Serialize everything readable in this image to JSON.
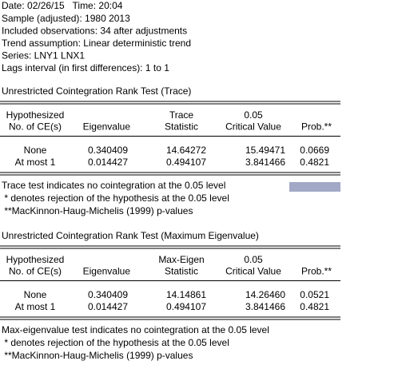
{
  "header": {
    "lines": [
      "Date: 02/26/15   Time: 20:04",
      "Sample (adjusted): 1980 2013",
      "Included observations: 34 after adjustments",
      "Trend assumption: Linear deterministic trend",
      "Series: LNY1 LNX1",
      "Lags interval (in first differences): 1 to 1"
    ]
  },
  "sections": [
    {
      "title": "Unrestricted Cointegration Rank Test (Trace)",
      "columns": [
        [
          "Hypothesized",
          "No. of CE(s)"
        ],
        [
          "Eigenvalue"
        ],
        [
          "Trace",
          "Statistic"
        ],
        [
          "0.05",
          "Critical Value"
        ],
        [
          "Prob.**"
        ]
      ],
      "rows": [
        [
          "None",
          "0.340409",
          "14.64272",
          "15.49471",
          "0.0669"
        ],
        [
          "At most 1",
          "0.014427",
          "0.494107",
          "3.841466",
          "0.4821"
        ]
      ],
      "notes": [
        "Trace test indicates no cointegration at the 0.05 level",
        " * denotes rejection of the hypothesis at the 0.05 level",
        " **MacKinnon-Haug-Michelis (1999) p-values"
      ]
    },
    {
      "title": "Unrestricted Cointegration Rank Test (Maximum Eigenvalue)",
      "columns": [
        [
          "Hypothesized",
          "No. of CE(s)"
        ],
        [
          "Eigenvalue"
        ],
        [
          "Max-Eigen",
          "Statistic"
        ],
        [
          "0.05",
          "Critical Value"
        ],
        [
          "Prob.**"
        ]
      ],
      "rows": [
        [
          "None",
          "0.340409",
          "14.14861",
          "14.26460",
          "0.0521"
        ],
        [
          "At most 1",
          "0.014427",
          "0.494107",
          "3.841466",
          "0.4821"
        ]
      ],
      "notes": [
        "Max-eigenvalue test indicates no cointegration at the 0.05 level",
        " * denotes rejection of the hypothesis at the 0.05 level",
        " **MacKinnon-Haug-Michelis (1999) p-values"
      ]
    }
  ]
}
